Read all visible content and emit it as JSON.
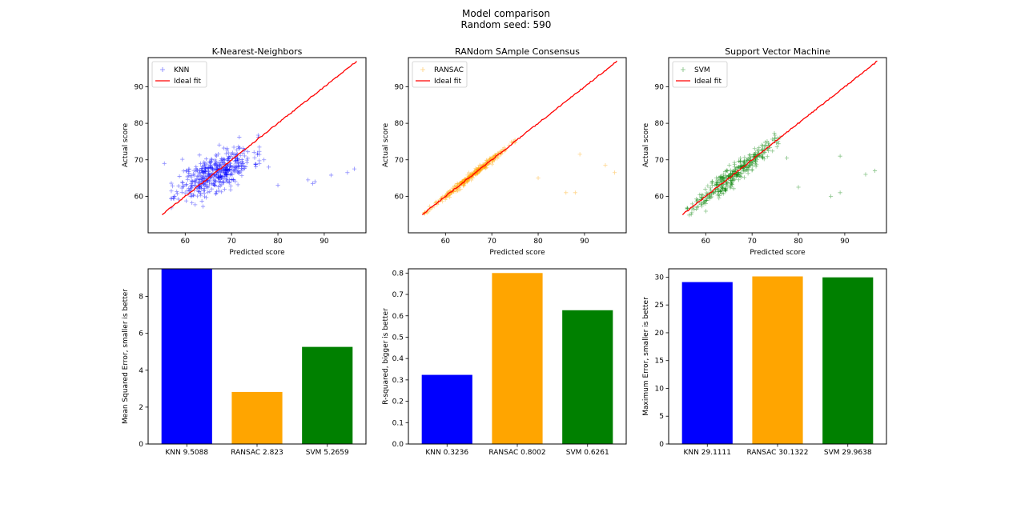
{
  "figure": {
    "title": "Model comparison",
    "subtitle": "Random seed: 590"
  },
  "chart_data": [
    {
      "type": "scatter",
      "title": "K-Nearest-Neighbors",
      "xlabel": "Predicted score",
      "ylabel": "Actual score",
      "xlim": [
        52,
        99
      ],
      "ylim": [
        50,
        98
      ],
      "xticks": [
        60,
        70,
        80,
        90
      ],
      "yticks": [
        60,
        70,
        80,
        90
      ],
      "legend_position": "top-left",
      "series": [
        {
          "name": "KNN",
          "marker": "+",
          "color": "#0000ff",
          "seed": 11,
          "cluster": {
            "x_range": [
              57,
              76
            ],
            "offset_sd": 2.6,
            "slope": 0.55,
            "n": 480
          },
          "outliers": [
            [
              55.5,
              69
            ],
            [
              80,
              63
            ],
            [
              86.5,
              64.5
            ],
            [
              87.5,
              63.5
            ],
            [
              88,
              64
            ],
            [
              91.5,
              65.8
            ],
            [
              95,
              66.5
            ],
            [
              96.5,
              67.5
            ],
            [
              78,
              68
            ],
            [
              77,
              70
            ]
          ]
        },
        {
          "name": "Ideal fit",
          "type": "line",
          "color": "#ff0000",
          "x": [
            55,
            97
          ],
          "y": [
            55,
            97
          ]
        }
      ]
    },
    {
      "type": "scatter",
      "title": "RANdom SAmple Consensus",
      "xlabel": "Predicted score",
      "ylabel": "Actual score",
      "xlim": [
        52,
        99
      ],
      "ylim": [
        50,
        98
      ],
      "xticks": [
        60,
        70,
        80,
        90
      ],
      "yticks": [
        60,
        70,
        80,
        90
      ],
      "legend_position": "top-left",
      "series": [
        {
          "name": "RANSAC",
          "marker": "+",
          "color": "#ffa500",
          "seed": 23,
          "cluster": {
            "x_range": [
              55.5,
              75
            ],
            "offset_sd": 0.45,
            "slope": 1.0,
            "n": 320
          },
          "outliers": [
            [
              80,
              65
            ],
            [
              86,
              61
            ],
            [
              88,
              61
            ],
            [
              89,
              71.5
            ],
            [
              94.5,
              68.5
            ],
            [
              96.5,
              66.5
            ]
          ]
        },
        {
          "name": "Ideal fit",
          "type": "line",
          "color": "#ff0000",
          "x": [
            55,
            97
          ],
          "y": [
            55,
            97
          ]
        }
      ]
    },
    {
      "type": "scatter",
      "title": "Support Vector Machine",
      "xlabel": "Predicted score",
      "ylabel": "Actual score",
      "xlim": [
        52,
        99
      ],
      "ylim": [
        50,
        98
      ],
      "xticks": [
        60,
        70,
        80,
        90
      ],
      "yticks": [
        60,
        70,
        80,
        90
      ],
      "legend_position": "top-left",
      "series": [
        {
          "name": "SVM",
          "marker": "+",
          "color": "#008000",
          "seed": 37,
          "cluster": {
            "x_range": [
              56,
              76
            ],
            "offset_sd": 1.4,
            "slope": 1.0,
            "n": 360
          },
          "outliers": [
            [
              77.5,
              70.5
            ],
            [
              80,
              62.5
            ],
            [
              87,
              60
            ],
            [
              89,
              61
            ],
            [
              89,
              71
            ],
            [
              94.5,
              66
            ],
            [
              96.5,
              67
            ],
            [
              58,
              56.5
            ],
            [
              57,
              55.5
            ]
          ]
        },
        {
          "name": "Ideal fit",
          "type": "line",
          "color": "#ff0000",
          "x": [
            55,
            97
          ],
          "y": [
            55,
            97
          ]
        }
      ]
    },
    {
      "type": "bar",
      "ylabel": "Mean Squared Error, smaller is better",
      "categories": [
        "KNN 9.5088",
        "RANSAC 2.823",
        "SVM 5.2659"
      ],
      "values": [
        9.5088,
        2.823,
        5.2659
      ],
      "colors": [
        "#0000ff",
        "#ffa500",
        "#008000"
      ],
      "ylim": [
        0,
        9.5
      ],
      "yticks": [
        0,
        2,
        4,
        6,
        8
      ]
    },
    {
      "type": "bar",
      "ylabel": "R-squared, bigger is better",
      "categories": [
        "KNN 0.3236",
        "RANSAC 0.8002",
        "SVM 0.6261"
      ],
      "values": [
        0.3236,
        0.8002,
        0.6261
      ],
      "colors": [
        "#0000ff",
        "#ffa500",
        "#008000"
      ],
      "ylim": [
        0,
        0.82
      ],
      "yticks": [
        0.0,
        0.1,
        0.2,
        0.3,
        0.4,
        0.5,
        0.6,
        0.7,
        0.8
      ]
    },
    {
      "type": "bar",
      "ylabel": "Maximum Error, smaller is better",
      "categories": [
        "KNN 29.1111",
        "RANSAC 30.1322",
        "SVM 29.9638"
      ],
      "values": [
        29.1111,
        30.1322,
        29.9638
      ],
      "colors": [
        "#0000ff",
        "#ffa500",
        "#008000"
      ],
      "ylim": [
        0,
        31.5
      ],
      "yticks": [
        0,
        5,
        10,
        15,
        20,
        25,
        30
      ]
    }
  ]
}
